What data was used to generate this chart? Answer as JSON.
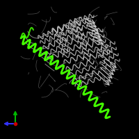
{
  "background_color": "#000000",
  "fig_width": 2.0,
  "fig_height": 2.0,
  "dpi": 100,
  "gray": "#c8c8c8",
  "green": "#44ff00",
  "ax_green": "#00bb00",
  "ax_blue": "#3333ff",
  "ax_red": "#cc0000"
}
